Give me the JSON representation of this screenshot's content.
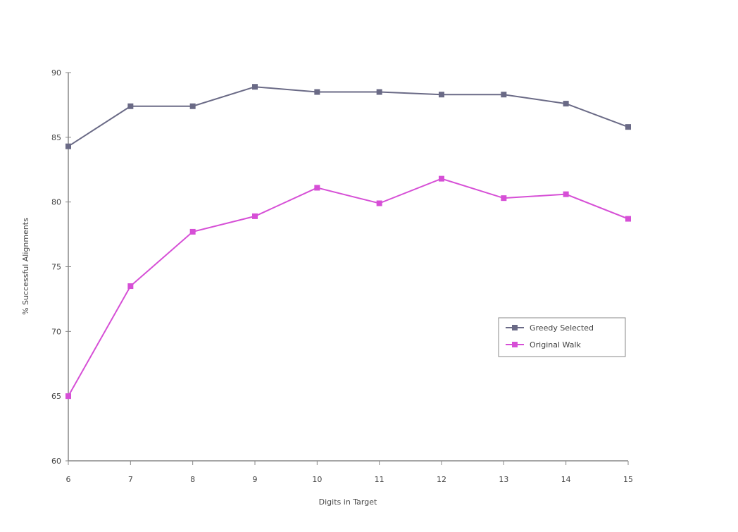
{
  "chart_data": {
    "type": "line",
    "title": "",
    "xlabel": "Digits in Target",
    "ylabel": "% Successful Alignments",
    "x": [
      6,
      7,
      8,
      9,
      10,
      11,
      12,
      13,
      14,
      15
    ],
    "x_ticks": [
      "6",
      "7",
      "8",
      "9",
      "10",
      "11",
      "12",
      "13",
      "14",
      "15"
    ],
    "y_ticks": [
      "60",
      "65",
      "70",
      "75",
      "80",
      "85",
      "90"
    ],
    "ylim": [
      60,
      90
    ],
    "xlim": [
      6,
      15
    ],
    "grid": false,
    "legend_position": "center-right",
    "series": [
      {
        "name": "Greedy Selected",
        "color": "#6a6a86",
        "marker": "square",
        "values": [
          84.3,
          87.4,
          87.4,
          88.9,
          88.5,
          88.5,
          88.3,
          88.3,
          87.6,
          85.8
        ]
      },
      {
        "name": "Original Walk",
        "color": "#d64fd6",
        "marker": "square",
        "values": [
          65.0,
          73.5,
          77.7,
          78.9,
          81.1,
          79.9,
          81.8,
          80.3,
          80.6,
          78.7
        ]
      }
    ]
  }
}
